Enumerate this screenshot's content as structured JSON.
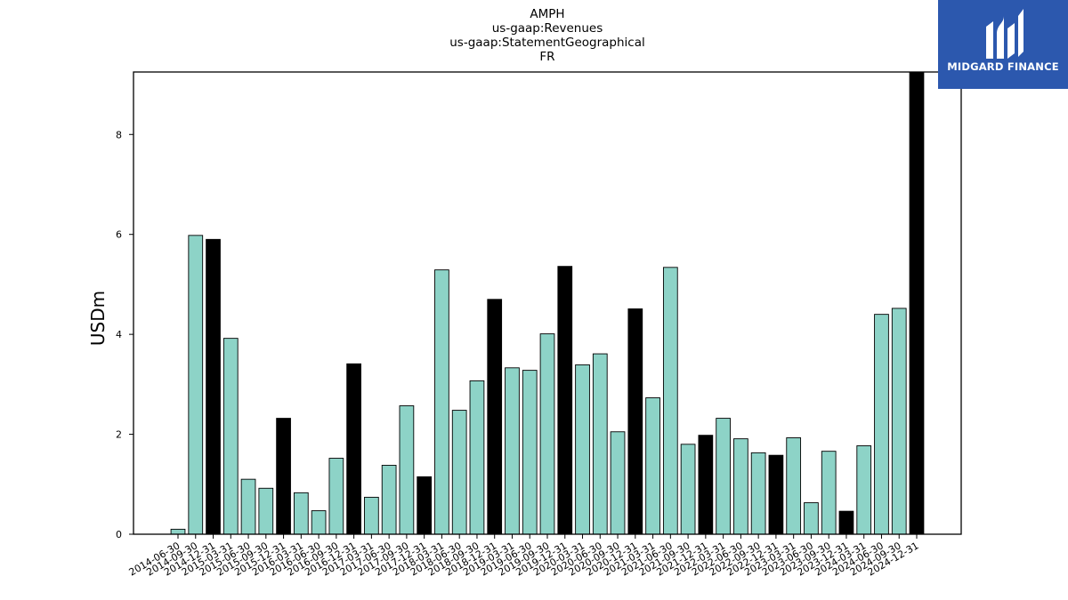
{
  "chart_data": {
    "type": "bar",
    "title_lines": [
      "AMPH",
      "us-gaap:Revenues",
      "us-gaap:StatementGeographical",
      "FR"
    ],
    "ylabel": "USDm",
    "xlabel": "",
    "ylim": [
      0,
      9.25
    ],
    "yticks": [
      0,
      2,
      4,
      6,
      8
    ],
    "grid": false,
    "colors": {
      "quarterly": "#8dd3c7",
      "year_end": "#000000",
      "edge": "#000000"
    },
    "categories": [
      "2014-06-30",
      "2014-09-30",
      "2014-12-31",
      "2015-03-31",
      "2015-06-30",
      "2015-09-30",
      "2015-12-31",
      "2016-03-31",
      "2016-06-30",
      "2016-09-30",
      "2016-12-31",
      "2017-03-31",
      "2017-06-30",
      "2017-09-30",
      "2017-12-31",
      "2018-03-31",
      "2018-06-30",
      "2018-09-30",
      "2018-12-31",
      "2019-03-31",
      "2019-06-30",
      "2019-09-30",
      "2019-12-31",
      "2020-03-31",
      "2020-06-30",
      "2020-09-30",
      "2020-12-31",
      "2021-03-31",
      "2021-06-30",
      "2021-09-30",
      "2021-12-31",
      "2022-03-31",
      "2022-06-30",
      "2022-09-30",
      "2022-12-31",
      "2023-03-31",
      "2023-06-30",
      "2023-09-30",
      "2023-12-31",
      "2024-03-31",
      "2024-06-30",
      "2024-09-30",
      "2024-12-31"
    ],
    "values": [
      0.1,
      5.98,
      5.9,
      3.92,
      1.1,
      0.92,
      2.32,
      0.83,
      0.47,
      1.52,
      3.41,
      0.74,
      1.38,
      2.57,
      1.15,
      5.29,
      2.48,
      3.07,
      4.7,
      3.33,
      3.28,
      4.01,
      5.36,
      3.39,
      3.61,
      2.05,
      4.51,
      2.73,
      5.34,
      1.8,
      1.98,
      2.32,
      1.91,
      1.63,
      1.58,
      1.93,
      0.63,
      1.66,
      0.46,
      1.77,
      4.4,
      4.52,
      9.25
    ]
  },
  "logo": {
    "text": "MIDGARD FINANCE",
    "mark_icon": "midgard-logo-icon"
  }
}
